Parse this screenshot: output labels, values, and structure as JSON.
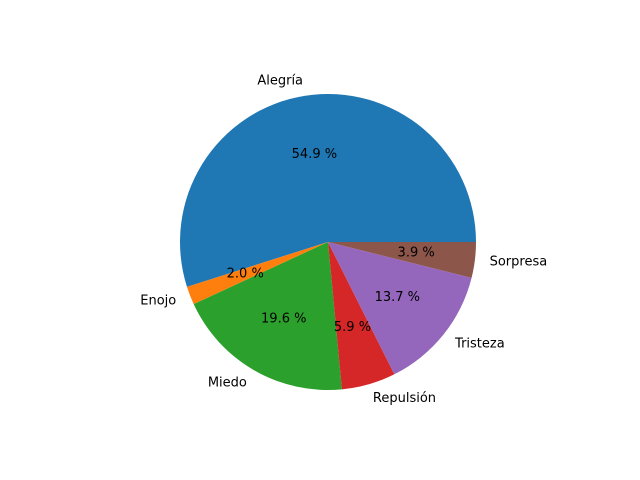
{
  "chart_data": {
    "type": "pie",
    "title": "",
    "categories": [
      "Alegría",
      "Enojo",
      "Miedo",
      "Repulsión",
      "Tristeza",
      "Sorpresa"
    ],
    "values": [
      54.9,
      2.0,
      19.6,
      5.9,
      13.7,
      3.9
    ],
    "pct_labels": [
      "54.9 %",
      "2.0 %",
      "19.6 %",
      "5.9 %",
      "13.7 %",
      "3.9 %"
    ],
    "colors": [
      "#1f77b4",
      "#ff7f0e",
      "#2ca02c",
      "#d62728",
      "#9467bd",
      "#8c564b"
    ],
    "start_angle_deg": 0,
    "direction": "counterclockwise",
    "legend": "none"
  }
}
